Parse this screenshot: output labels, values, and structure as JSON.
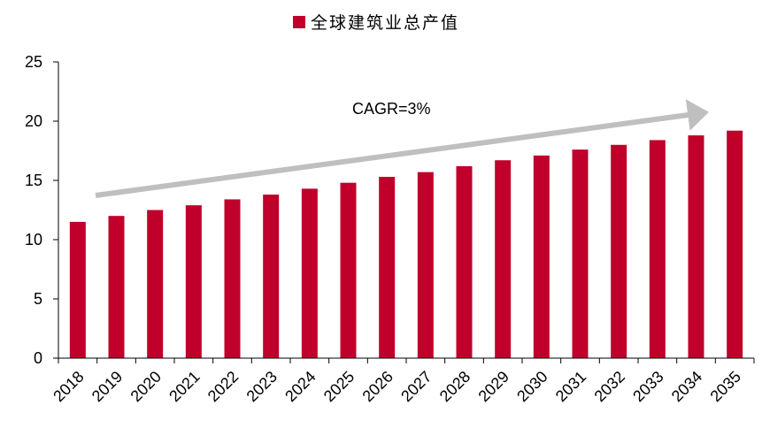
{
  "chart_data": {
    "type": "bar",
    "categories": [
      "2018",
      "2019",
      "2020",
      "2021",
      "2022",
      "2023",
      "2024",
      "2025",
      "2026",
      "2027",
      "2028",
      "2029",
      "2030",
      "2031",
      "2032",
      "2033",
      "2034",
      "2035"
    ],
    "series": [
      {
        "name": "全球建筑业总产值",
        "values": [
          11.5,
          12.0,
          12.5,
          12.9,
          13.4,
          13.8,
          14.3,
          14.8,
          15.3,
          15.7,
          16.2,
          16.7,
          17.1,
          17.6,
          18.0,
          18.4,
          18.8,
          19.2
        ]
      }
    ],
    "ylim": [
      0,
      25
    ],
    "yticks": [
      0,
      5,
      10,
      15,
      20,
      25
    ],
    "legend_position": "top",
    "grid": false,
    "annotation": {
      "text": "CAGR=3%"
    },
    "colors": {
      "bar": "#C0002A",
      "arrow": "#BFBFBF",
      "axis": "#000000"
    }
  }
}
